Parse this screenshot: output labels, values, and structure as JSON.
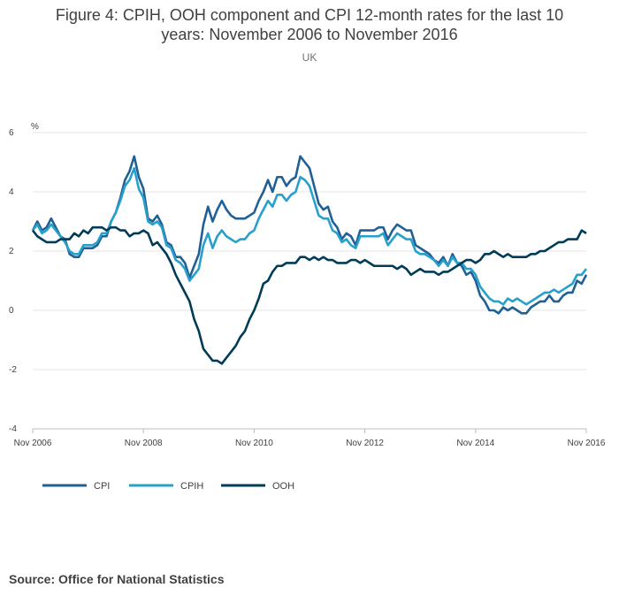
{
  "chart_data": {
    "type": "line",
    "title_line1": "Figure 4: CPIH, OOH component and CPI 12-month rates for the last 10",
    "title_line2": "years: November 2006 to November 2016",
    "subtitle": "UK",
    "ylabel": "%",
    "ylim": [
      -4,
      6
    ],
    "yticks": [
      6,
      4,
      2,
      0,
      -2,
      -4
    ],
    "x_start": "Nov 2006",
    "x_end": "Nov 2016",
    "xticks": [
      "Nov 2006",
      "Nov 2008",
      "Nov 2010",
      "Nov 2012",
      "Nov 2014",
      "Nov 2016"
    ],
    "grid": true,
    "legend_position": "bottom-left",
    "series": [
      {
        "name": "CPI",
        "color": "#206095",
        "values": [
          2.7,
          3.0,
          2.7,
          2.8,
          3.1,
          2.8,
          2.5,
          2.4,
          1.9,
          1.8,
          1.8,
          2.1,
          2.1,
          2.1,
          2.2,
          2.5,
          2.5,
          3.0,
          3.3,
          3.8,
          4.4,
          4.7,
          5.2,
          4.5,
          4.1,
          3.1,
          3.0,
          3.2,
          2.9,
          2.3,
          2.2,
          1.8,
          1.8,
          1.6,
          1.1,
          1.5,
          1.9,
          2.9,
          3.5,
          3.0,
          3.4,
          3.7,
          3.4,
          3.2,
          3.1,
          3.1,
          3.1,
          3.2,
          3.3,
          3.7,
          4.0,
          4.4,
          4.0,
          4.5,
          4.5,
          4.2,
          4.4,
          4.5,
          5.2,
          5.0,
          4.8,
          4.2,
          3.6,
          3.4,
          3.5,
          3.0,
          2.8,
          2.4,
          2.6,
          2.5,
          2.2,
          2.7,
          2.7,
          2.7,
          2.7,
          2.8,
          2.8,
          2.4,
          2.7,
          2.9,
          2.8,
          2.7,
          2.7,
          2.2,
          2.1,
          2.0,
          1.9,
          1.7,
          1.6,
          1.8,
          1.5,
          1.9,
          1.6,
          1.5,
          1.2,
          1.3,
          1.0,
          0.5,
          0.3,
          0.0,
          0.0,
          -0.1,
          0.1,
          0.0,
          0.1,
          0.0,
          -0.1,
          -0.1,
          0.1,
          0.2,
          0.3,
          0.3,
          0.5,
          0.3,
          0.3,
          0.5,
          0.6,
          0.6,
          1.0,
          0.9,
          1.2
        ]
      },
      {
        "name": "CPIH",
        "color": "#27a0cc",
        "values": [
          2.7,
          2.9,
          2.6,
          2.7,
          2.9,
          2.7,
          2.5,
          2.3,
          2.0,
          1.9,
          1.9,
          2.2,
          2.2,
          2.2,
          2.3,
          2.6,
          2.6,
          3.0,
          3.3,
          3.7,
          4.2,
          4.4,
          4.8,
          4.1,
          3.8,
          3.0,
          2.9,
          3.0,
          2.8,
          2.2,
          2.1,
          1.7,
          1.6,
          1.4,
          1.0,
          1.2,
          1.4,
          2.2,
          2.6,
          2.1,
          2.5,
          2.7,
          2.5,
          2.4,
          2.3,
          2.4,
          2.4,
          2.6,
          2.7,
          3.1,
          3.4,
          3.7,
          3.5,
          3.9,
          3.9,
          3.7,
          3.9,
          4.0,
          4.5,
          4.4,
          4.2,
          3.7,
          3.2,
          3.1,
          3.1,
          2.7,
          2.6,
          2.3,
          2.4,
          2.2,
          2.1,
          2.5,
          2.5,
          2.5,
          2.5,
          2.5,
          2.6,
          2.2,
          2.4,
          2.6,
          2.5,
          2.4,
          2.4,
          2.0,
          1.9,
          1.9,
          1.8,
          1.7,
          1.5,
          1.7,
          1.5,
          1.8,
          1.6,
          1.6,
          1.4,
          1.4,
          1.2,
          0.8,
          0.6,
          0.4,
          0.3,
          0.3,
          0.2,
          0.4,
          0.3,
          0.4,
          0.3,
          0.2,
          0.3,
          0.4,
          0.5,
          0.6,
          0.6,
          0.7,
          0.6,
          0.7,
          0.8,
          0.9,
          1.2,
          1.2,
          1.4
        ]
      },
      {
        "name": "OOH",
        "color": "#003c57",
        "values": [
          2.7,
          2.5,
          2.4,
          2.3,
          2.3,
          2.3,
          2.4,
          2.4,
          2.4,
          2.6,
          2.5,
          2.7,
          2.6,
          2.8,
          2.8,
          2.8,
          2.7,
          2.8,
          2.8,
          2.7,
          2.7,
          2.5,
          2.6,
          2.6,
          2.7,
          2.6,
          2.2,
          2.3,
          2.1,
          1.9,
          1.6,
          1.2,
          0.9,
          0.6,
          0.3,
          -0.3,
          -0.7,
          -1.3,
          -1.5,
          -1.7,
          -1.7,
          -1.8,
          -1.6,
          -1.4,
          -1.2,
          -0.9,
          -0.7,
          -0.3,
          0.0,
          0.4,
          0.9,
          1.0,
          1.3,
          1.5,
          1.5,
          1.6,
          1.6,
          1.6,
          1.8,
          1.8,
          1.7,
          1.8,
          1.7,
          1.8,
          1.7,
          1.7,
          1.6,
          1.6,
          1.6,
          1.7,
          1.7,
          1.6,
          1.7,
          1.6,
          1.5,
          1.5,
          1.5,
          1.5,
          1.5,
          1.4,
          1.5,
          1.4,
          1.2,
          1.3,
          1.4,
          1.3,
          1.3,
          1.3,
          1.2,
          1.3,
          1.3,
          1.4,
          1.5,
          1.6,
          1.7,
          1.7,
          1.6,
          1.7,
          1.9,
          1.9,
          2.0,
          1.9,
          1.8,
          1.9,
          1.8,
          1.8,
          1.8,
          1.8,
          1.9,
          1.9,
          2.0,
          2.0,
          2.1,
          2.2,
          2.3,
          2.3,
          2.4,
          2.4,
          2.4,
          2.7,
          2.6
        ]
      }
    ]
  },
  "source": "Source: Office for National Statistics"
}
